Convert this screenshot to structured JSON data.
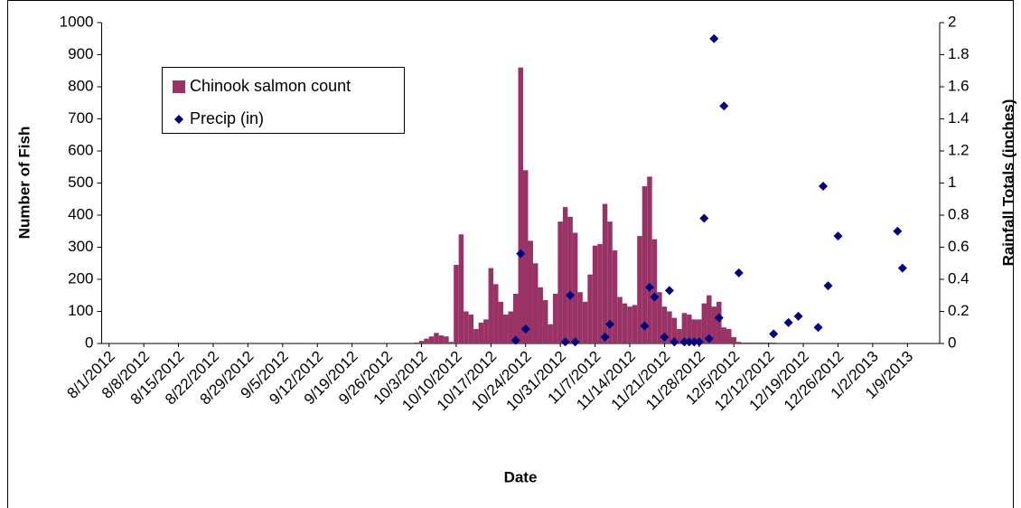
{
  "chart_data": {
    "type": "bar",
    "x_label": "Date",
    "y_label": "Number of Fish",
    "y2_label": "Rainfall Totals (inches)",
    "xlim": [
      "7/31/2012",
      "1/16/2013"
    ],
    "xticks": [
      "8/1/2012",
      "8/8/2012",
      "8/15/2012",
      "8/22/2012",
      "8/29/2012",
      "9/5/2012",
      "9/12/2012",
      "9/19/2012",
      "9/26/2012",
      "10/3/2012",
      "10/10/2012",
      "10/17/2012",
      "10/24/2012",
      "10/31/2012",
      "11/7/2012",
      "11/14/2012",
      "11/21/2012",
      "11/28/2012",
      "12/5/2012",
      "12/12/2012",
      "12/19/2012",
      "12/26/2012",
      "1/2/2013",
      "1/9/2013"
    ],
    "ylim": [
      0,
      1000
    ],
    "yticks": [
      0,
      100,
      200,
      300,
      400,
      500,
      600,
      700,
      800,
      900,
      1000
    ],
    "y2lim": [
      0,
      2
    ],
    "y2ticks": [
      0,
      0.2,
      0.4,
      0.6,
      0.8,
      1,
      1.2,
      1.4,
      1.6,
      1.8,
      2
    ],
    "series": [
      {
        "name": "Chinook salmon count",
        "type": "bar",
        "color": "#993366",
        "x": [
          "10/2/2012",
          "10/3/2012",
          "10/4/2012",
          "10/5/2012",
          "10/6/2012",
          "10/7/2012",
          "10/8/2012",
          "10/9/2012",
          "10/10/2012",
          "10/11/2012",
          "10/12/2012",
          "10/13/2012",
          "10/14/2012",
          "10/15/2012",
          "10/16/2012",
          "10/17/2012",
          "10/18/2012",
          "10/19/2012",
          "10/20/2012",
          "10/21/2012",
          "10/22/2012",
          "10/23/2012",
          "10/24/2012",
          "10/25/2012",
          "10/26/2012",
          "10/27/2012",
          "10/28/2012",
          "10/29/2012",
          "10/30/2012",
          "10/31/2012",
          "11/1/2012",
          "11/2/2012",
          "11/3/2012",
          "11/4/2012",
          "11/5/2012",
          "11/6/2012",
          "11/7/2012",
          "11/8/2012",
          "11/9/2012",
          "11/10/2012",
          "11/11/2012",
          "11/12/2012",
          "11/13/2012",
          "11/14/2012",
          "11/15/2012",
          "11/16/2012",
          "11/17/2012",
          "11/18/2012",
          "11/19/2012",
          "11/20/2012",
          "11/21/2012",
          "11/22/2012",
          "11/23/2012",
          "11/24/2012",
          "11/25/2012",
          "11/26/2012",
          "11/27/2012",
          "11/28/2012",
          "11/29/2012",
          "11/30/2012",
          "12/1/2012",
          "12/2/2012",
          "12/3/2012",
          "12/4/2012",
          "12/5/2012",
          "12/6/2012",
          "12/7/2012",
          "12/8/2012",
          "12/9/2012",
          "12/10/2012",
          "12/11/2012",
          "12/12/2012",
          "12/13/2012"
        ],
        "values": [
          3,
          8,
          15,
          22,
          33,
          25,
          22,
          5,
          245,
          340,
          100,
          90,
          45,
          65,
          75,
          235,
          185,
          130,
          90,
          100,
          155,
          860,
          540,
          320,
          250,
          175,
          135,
          60,
          155,
          380,
          425,
          395,
          345,
          160,
          130,
          215,
          305,
          310,
          435,
          380,
          290,
          145,
          125,
          115,
          120,
          335,
          490,
          520,
          325,
          160,
          115,
          100,
          80,
          45,
          95,
          90,
          75,
          75,
          125,
          150,
          115,
          130,
          50,
          45,
          20,
          5,
          3,
          3,
          3,
          3,
          3,
          3,
          3
        ]
      },
      {
        "name": "Precip (in)",
        "type": "scatter",
        "axis": "y2",
        "color": "#000080",
        "x": [
          "10/22/2012",
          "10/23/2012",
          "10/24/2012",
          "11/1/2012",
          "11/2/2012",
          "11/3/2012",
          "11/9/2012",
          "11/10/2012",
          "11/17/2012",
          "11/18/2012",
          "11/19/2012",
          "11/21/2012",
          "11/22/2012",
          "11/23/2012",
          "11/25/2012",
          "11/26/2012",
          "11/27/2012",
          "11/28/2012",
          "11/29/2012",
          "11/30/2012",
          "12/1/2012",
          "12/2/2012",
          "12/3/2012",
          "12/6/2012",
          "12/13/2012",
          "12/16/2012",
          "12/18/2012",
          "12/22/2012",
          "12/23/2012",
          "12/24/2012",
          "12/26/2012",
          "1/7/2013",
          "1/8/2013"
        ],
        "values": [
          0.02,
          0.56,
          0.09,
          0.01,
          0.3,
          0.01,
          0.04,
          0.12,
          0.11,
          0.35,
          0.29,
          0.04,
          0.33,
          0.01,
          0.01,
          0.01,
          0.01,
          0.01,
          0.78,
          0.03,
          1.9,
          0.16,
          1.48,
          0.44,
          0.06,
          0.13,
          0.17,
          0.1,
          0.98,
          0.36,
          0.67,
          0.7,
          0.47
        ]
      }
    ]
  }
}
